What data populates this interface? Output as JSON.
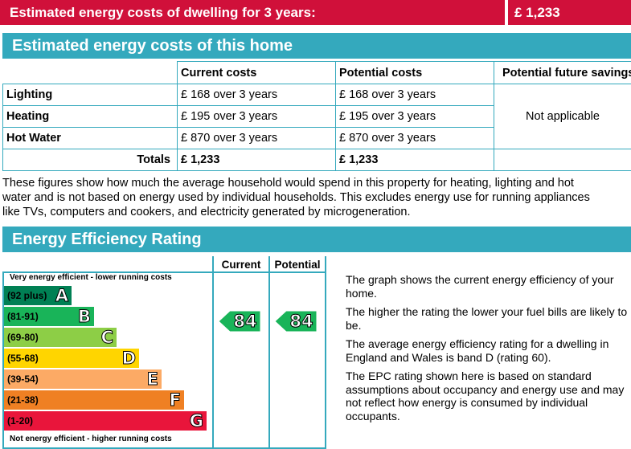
{
  "header": {
    "title": "Estimated energy costs of dwelling for 3 years:",
    "total": "£ 1,233"
  },
  "costs_section": {
    "title": "Estimated energy costs of this home",
    "columns": [
      "Current costs",
      "Potential costs",
      "Potential future savings"
    ],
    "rows": [
      {
        "label": "Lighting",
        "current": "£ 168 over 3 years",
        "potential": "£ 168 over 3 years"
      },
      {
        "label": "Heating",
        "current": "£ 195 over 3 years",
        "potential": "£ 195 over 3 years"
      },
      {
        "label": "Hot Water",
        "current": "£ 870 over 3 years",
        "potential": "£ 870 over 3 years"
      }
    ],
    "savings": "Not applicable",
    "totals": {
      "label": "Totals",
      "current": "£ 1,233",
      "potential": "£ 1,233"
    },
    "note": [
      "These figures show how much the average household would spend in this property for heating, lighting and hot",
      "water and is not based on energy used by individual households. This excludes energy use for running appliances",
      "like TVs, computers and cookers, and electricity generated by microgeneration."
    ]
  },
  "rating_section": {
    "title": "Energy Efficiency Rating",
    "col_current": "Current",
    "col_potential": "Potential",
    "top_caption": "Very energy efficient - lower running costs",
    "bottom_caption": "Not energy efficient - higher running costs",
    "bands": [
      {
        "range": "(92 plus)",
        "letter": "A",
        "color": "#008054"
      },
      {
        "range": "(81-91)",
        "letter": "B",
        "color": "#19b459"
      },
      {
        "range": "(69-80)",
        "letter": "C",
        "color": "#8dce46"
      },
      {
        "range": "(55-68)",
        "letter": "D",
        "color": "#ffd500"
      },
      {
        "range": "(39-54)",
        "letter": "E",
        "color": "#fcaa65"
      },
      {
        "range": "(21-38)",
        "letter": "F",
        "color": "#ef8023"
      },
      {
        "range": "(1-20)",
        "letter": "G",
        "color": "#e9153b"
      }
    ],
    "current_rating": 84,
    "potential_rating": 84,
    "rating_color": "#19b459",
    "descriptions": [
      "The graph shows the current energy efficiency of your home.",
      "The higher the rating the lower your fuel bills are likely to be.",
      "The average energy efficiency rating for a dwelling in England and Wales is band D (rating 60).",
      "The EPC rating shown here is based on standard assumptions about occupancy and energy use and may not reflect how energy is consumed by individual occupants."
    ]
  }
}
